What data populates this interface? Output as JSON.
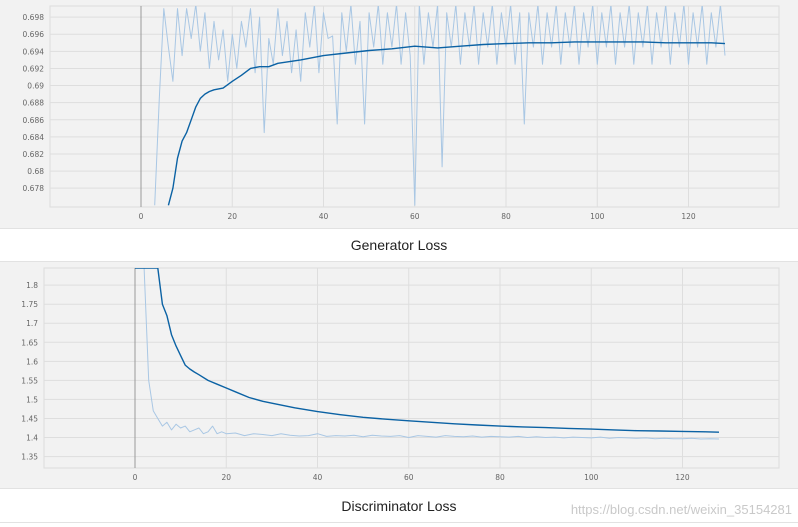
{
  "watermark": "https://blog.csdn.net/weixin_35154281",
  "chart_data": [
    {
      "type": "line",
      "title": "Generator Loss",
      "xlabel": "",
      "ylabel": "",
      "xlim": [
        -20,
        140
      ],
      "ylim": [
        0.6758,
        0.6993
      ],
      "x_ticks": [
        0,
        20,
        40,
        60,
        80,
        100,
        120
      ],
      "y_ticks": [
        0.678,
        0.68,
        0.682,
        0.684,
        0.686,
        0.688,
        0.69,
        0.692,
        0.694,
        0.696,
        0.698
      ],
      "y_tick_labels": [
        "0.678",
        "0.68",
        "0.682",
        "0.684",
        "0.686",
        "0.688",
        "0.69",
        "0.692",
        "0.694",
        "0.696",
        "0.698"
      ],
      "grid": true,
      "colors": {
        "smoothed": "#0b62a4",
        "raw": "#a9c7e4",
        "zero_line": "#999999",
        "background": "#f2f2f2"
      },
      "series": [
        {
          "role": "smoothed",
          "x": [
            6,
            7,
            8,
            9,
            10,
            11,
            12,
            13,
            14,
            15,
            16,
            18,
            20,
            22,
            24,
            26,
            28,
            30,
            35,
            40,
            45,
            50,
            55,
            60,
            65,
            70,
            75,
            80,
            85,
            90,
            95,
            100,
            105,
            110,
            115,
            120,
            125,
            128
          ],
          "y": [
            0.676,
            0.678,
            0.6815,
            0.6835,
            0.6845,
            0.686,
            0.6875,
            0.6885,
            0.689,
            0.6893,
            0.6895,
            0.6897,
            0.6905,
            0.6912,
            0.692,
            0.6922,
            0.6922,
            0.6926,
            0.693,
            0.6935,
            0.6938,
            0.6941,
            0.6943,
            0.6946,
            0.6944,
            0.6946,
            0.6948,
            0.6949,
            0.695,
            0.695,
            0.6951,
            0.6951,
            0.6951,
            0.6951,
            0.695,
            0.695,
            0.695,
            0.6949
          ]
        },
        {
          "role": "raw",
          "x": [
            3,
            4,
            5,
            6,
            7,
            8,
            9,
            10,
            11,
            12,
            13,
            14,
            15,
            16,
            17,
            18,
            19,
            20,
            21,
            22,
            23,
            24,
            25,
            26,
            27,
            28,
            29,
            30,
            31,
            32,
            33,
            34,
            35,
            36,
            37,
            38,
            39,
            40,
            41,
            42,
            43,
            44,
            45,
            46,
            47,
            48,
            49,
            50,
            51,
            52,
            53,
            54,
            55,
            56,
            57,
            58,
            59,
            60,
            61,
            62,
            63,
            64,
            65,
            66,
            67,
            68,
            69,
            70,
            71,
            72,
            73,
            74,
            75,
            76,
            77,
            78,
            79,
            80,
            81,
            82,
            83,
            84,
            85,
            86,
            87,
            88,
            89,
            90,
            91,
            92,
            93,
            94,
            95,
            96,
            97,
            98,
            99,
            100,
            101,
            102,
            103,
            104,
            105,
            106,
            107,
            108,
            109,
            110,
            111,
            112,
            113,
            114,
            115,
            116,
            117,
            118,
            119,
            120,
            121,
            122,
            123,
            124,
            125,
            126,
            127,
            128
          ],
          "y": [
            0.676,
            0.6885,
            0.699,
            0.6945,
            0.6905,
            0.699,
            0.6935,
            0.699,
            0.6955,
            0.6995,
            0.694,
            0.6985,
            0.692,
            0.6975,
            0.693,
            0.6965,
            0.6905,
            0.696,
            0.692,
            0.6975,
            0.6945,
            0.699,
            0.6915,
            0.698,
            0.6845,
            0.6955,
            0.6925,
            0.699,
            0.6935,
            0.6975,
            0.6915,
            0.6965,
            0.6905,
            0.6985,
            0.6945,
            0.6995,
            0.6915,
            0.6985,
            0.6955,
            0.6958,
            0.6855,
            0.6985,
            0.694,
            0.6995,
            0.6925,
            0.6975,
            0.6855,
            0.6985,
            0.6945,
            0.6995,
            0.6925,
            0.6985,
            0.6945,
            0.6995,
            0.6925,
            0.6985,
            0.6935,
            0.676,
            0.6995,
            0.6925,
            0.6985,
            0.6945,
            0.6995,
            0.6805,
            0.6985,
            0.6945,
            0.6995,
            0.6925,
            0.6985,
            0.6945,
            0.6995,
            0.6925,
            0.6985,
            0.6945,
            0.6995,
            0.6925,
            0.6985,
            0.6945,
            0.6995,
            0.6925,
            0.6985,
            0.6855,
            0.6985,
            0.6945,
            0.6995,
            0.6925,
            0.6985,
            0.6945,
            0.6995,
            0.6925,
            0.6985,
            0.6945,
            0.6995,
            0.6925,
            0.6985,
            0.6945,
            0.6995,
            0.6925,
            0.6985,
            0.6945,
            0.6995,
            0.6925,
            0.6985,
            0.6945,
            0.6995,
            0.6925,
            0.6985,
            0.6945,
            0.6995,
            0.6925,
            0.6985,
            0.6945,
            0.6995,
            0.6925,
            0.6985,
            0.6945,
            0.6995,
            0.6925,
            0.6985,
            0.6945,
            0.6995,
            0.6925,
            0.6985,
            0.6945,
            0.6995,
            0.6935
          ]
        }
      ]
    },
    {
      "type": "line",
      "title": "Discriminator Loss",
      "xlabel": "",
      "ylabel": "",
      "xlim": [
        -20,
        140
      ],
      "ylim": [
        1.32,
        1.845
      ],
      "x_ticks": [
        0,
        20,
        40,
        60,
        80,
        100,
        120
      ],
      "y_ticks": [
        1.35,
        1.4,
        1.45,
        1.5,
        1.55,
        1.6,
        1.65,
        1.7,
        1.75,
        1.8
      ],
      "y_tick_labels": [
        "1.35",
        "1.4",
        "1.45",
        "1.5",
        "1.55",
        "1.6",
        "1.65",
        "1.7",
        "1.75",
        "1.8"
      ],
      "grid": true,
      "colors": {
        "smoothed": "#0b62a4",
        "raw": "#a9c7e4",
        "zero_line": "#999999",
        "background": "#f2f2f2"
      },
      "series": [
        {
          "role": "smoothed",
          "x": [
            0,
            5,
            6,
            7,
            8,
            9,
            10,
            11,
            12,
            13,
            14,
            16,
            18,
            20,
            22,
            25,
            28,
            30,
            35,
            40,
            45,
            50,
            55,
            60,
            65,
            70,
            75,
            80,
            85,
            90,
            95,
            100,
            105,
            110,
            115,
            120,
            125,
            128
          ],
          "y": [
            1.845,
            1.845,
            1.75,
            1.72,
            1.67,
            1.64,
            1.615,
            1.59,
            1.58,
            1.572,
            1.565,
            1.55,
            1.54,
            1.53,
            1.52,
            1.505,
            1.495,
            1.49,
            1.478,
            1.468,
            1.46,
            1.453,
            1.448,
            1.444,
            1.44,
            1.436,
            1.433,
            1.43,
            1.428,
            1.426,
            1.424,
            1.422,
            1.42,
            1.418,
            1.417,
            1.416,
            1.415,
            1.414
          ]
        },
        {
          "role": "raw",
          "x": [
            2,
            3,
            4,
            5,
            6,
            7,
            8,
            9,
            10,
            11,
            12,
            13,
            14,
            15,
            16,
            17,
            18,
            19,
            20,
            22,
            24,
            26,
            28,
            30,
            32,
            34,
            36,
            38,
            40,
            42,
            44,
            46,
            48,
            50,
            52,
            54,
            56,
            58,
            60,
            62,
            64,
            66,
            68,
            70,
            72,
            74,
            76,
            78,
            80,
            82,
            84,
            86,
            88,
            90,
            92,
            94,
            96,
            98,
            100,
            102,
            104,
            106,
            108,
            110,
            112,
            114,
            116,
            118,
            120,
            122,
            124,
            126,
            128
          ],
          "y": [
            1.845,
            1.55,
            1.47,
            1.45,
            1.43,
            1.44,
            1.42,
            1.435,
            1.425,
            1.43,
            1.415,
            1.42,
            1.425,
            1.41,
            1.415,
            1.43,
            1.41,
            1.415,
            1.41,
            1.412,
            1.405,
            1.41,
            1.408,
            1.405,
            1.41,
            1.406,
            1.404,
            1.405,
            1.41,
            1.403,
            1.405,
            1.404,
            1.406,
            1.402,
            1.406,
            1.404,
            1.403,
            1.405,
            1.4,
            1.405,
            1.403,
            1.401,
            1.405,
            1.403,
            1.402,
            1.404,
            1.401,
            1.403,
            1.402,
            1.401,
            1.403,
            1.4,
            1.402,
            1.4,
            1.401,
            1.399,
            1.401,
            1.4,
            1.399,
            1.401,
            1.398,
            1.4,
            1.399,
            1.398,
            1.399,
            1.397,
            1.398,
            1.397,
            1.397,
            1.398,
            1.396,
            1.397,
            1.396
          ]
        }
      ]
    }
  ]
}
